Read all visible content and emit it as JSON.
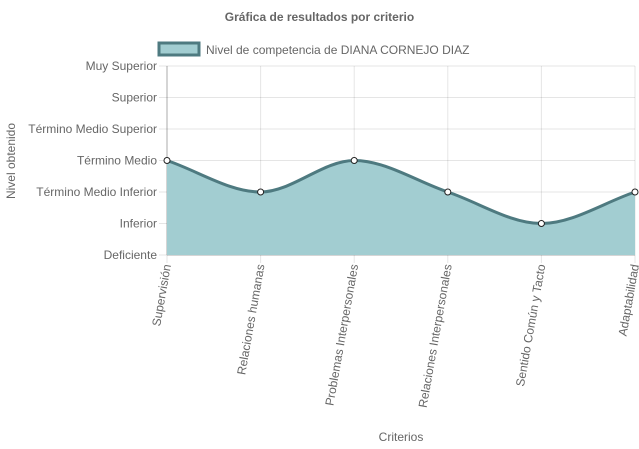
{
  "colors": {
    "line": "#4e7a80",
    "fill": "#a2cdd1",
    "point_fill": "#ffffff",
    "text": "#666666"
  },
  "chart_data": {
    "type": "area",
    "title": "Gráfica de resultados por criterio",
    "xlabel": "Criterios",
    "ylabel": "Nivel obtenido",
    "categories": [
      "Supervisión",
      "Relaciones humanas",
      "Problemas Interpersonales",
      "Relaciones Interpersonales",
      "Sentido Común y Tacto",
      "Adaptabilidad"
    ],
    "y_levels": [
      "Deficiente",
      "Inferior",
      "Término Medio Inferior",
      "Término Medio",
      "Término Medio Superior",
      "Superior",
      "Muy Superior"
    ],
    "series": [
      {
        "name": "Nivel de competencia de DIANA CORNEJO DIAZ",
        "values": [
          "Término Medio",
          "Término Medio Inferior",
          "Término Medio",
          "Término Medio Inferior",
          "Inferior",
          "Término Medio Inferior"
        ]
      }
    ],
    "legend_position": "top",
    "grid": true
  }
}
